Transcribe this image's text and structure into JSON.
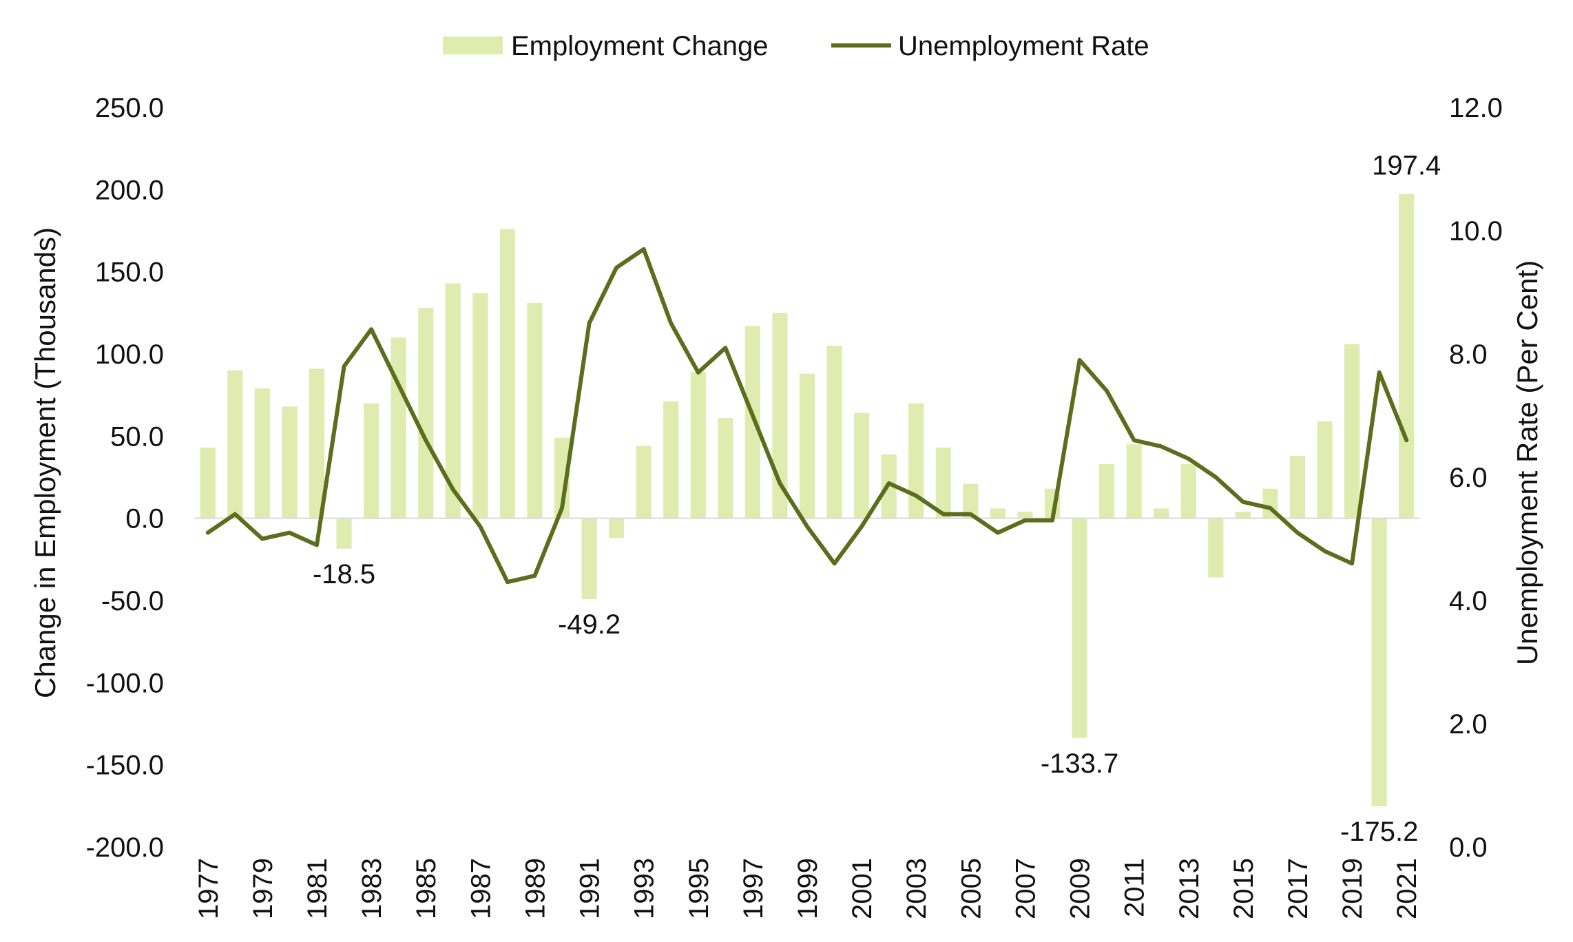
{
  "chart_data": {
    "type": "bar",
    "categories": [
      "1977",
      "1978",
      "1979",
      "1980",
      "1981",
      "1982",
      "1983",
      "1984",
      "1985",
      "1986",
      "1987",
      "1988",
      "1989",
      "1990",
      "1991",
      "1992",
      "1993",
      "1994",
      "1995",
      "1996",
      "1997",
      "1998",
      "1999",
      "2000",
      "2001",
      "2002",
      "2003",
      "2004",
      "2005",
      "2006",
      "2007",
      "2008",
      "2009",
      "2010",
      "2011",
      "2012",
      "2013",
      "2014",
      "2015",
      "2016",
      "2017",
      "2018",
      "2019",
      "2020",
      "2021"
    ],
    "x_tick_labels": [
      "1977",
      "1979",
      "1981",
      "1983",
      "1985",
      "1987",
      "1989",
      "1991",
      "1993",
      "1995",
      "1997",
      "1999",
      "2001",
      "2003",
      "2005",
      "2007",
      "2009",
      "2011",
      "2013",
      "2015",
      "2017",
      "2019",
      "2021"
    ],
    "series": [
      {
        "name": "Employment Change",
        "type": "bar",
        "axis": "left",
        "color": "#e0ebaf",
        "values": [
          43,
          90,
          79,
          68,
          91,
          -18.5,
          70,
          110,
          128,
          143,
          137,
          176,
          131,
          49,
          -49.2,
          -12,
          44,
          71,
          89,
          61,
          117,
          125,
          88,
          105,
          64,
          39,
          70,
          43,
          21,
          6,
          4,
          18,
          -133.7,
          33,
          45,
          6,
          33,
          -36,
          4,
          18,
          38,
          59,
          106,
          -175.2,
          197.4
        ]
      },
      {
        "name": "Unemployment Rate",
        "type": "line",
        "axis": "right",
        "color": "#5a6e1c",
        "values": [
          5.1,
          5.4,
          5.0,
          5.1,
          4.9,
          7.8,
          8.4,
          7.5,
          6.6,
          5.8,
          5.2,
          4.3,
          4.4,
          5.5,
          8.5,
          9.4,
          9.7,
          8.5,
          7.7,
          8.1,
          7.0,
          5.9,
          5.2,
          4.6,
          5.2,
          5.9,
          5.7,
          5.4,
          5.4,
          5.1,
          5.3,
          5.3,
          7.9,
          7.4,
          6.6,
          6.5,
          6.3,
          6.0,
          5.6,
          5.5,
          5.1,
          4.8,
          4.6,
          7.7,
          6.6
        ]
      }
    ],
    "data_labels": [
      {
        "category": "1982",
        "text": "-18.5"
      },
      {
        "category": "1991",
        "text": "-49.2"
      },
      {
        "category": "2009",
        "text": "-133.7"
      },
      {
        "category": "2020",
        "text": "-175.2"
      },
      {
        "category": "2021",
        "text": "197.4"
      }
    ],
    "y_left": {
      "label": "Change in Employment (Thousands)",
      "min": -200,
      "max": 250,
      "step": 50,
      "tick_labels": [
        "-200.0",
        "-150.0",
        "-100.0",
        "-50.0",
        "0.0",
        "50.0",
        "100.0",
        "150.0",
        "200.0",
        "250.0"
      ]
    },
    "y_right": {
      "label": "Unemployment Rate (Per Cent)",
      "min": 0,
      "max": 12,
      "step": 2,
      "tick_labels": [
        "0.0",
        "2.0",
        "4.0",
        "6.0",
        "8.0",
        "10.0",
        "12.0"
      ]
    },
    "legend": {
      "position": "top-center",
      "items": [
        "Employment Change",
        "Unemployment Rate"
      ]
    },
    "grid": false
  }
}
